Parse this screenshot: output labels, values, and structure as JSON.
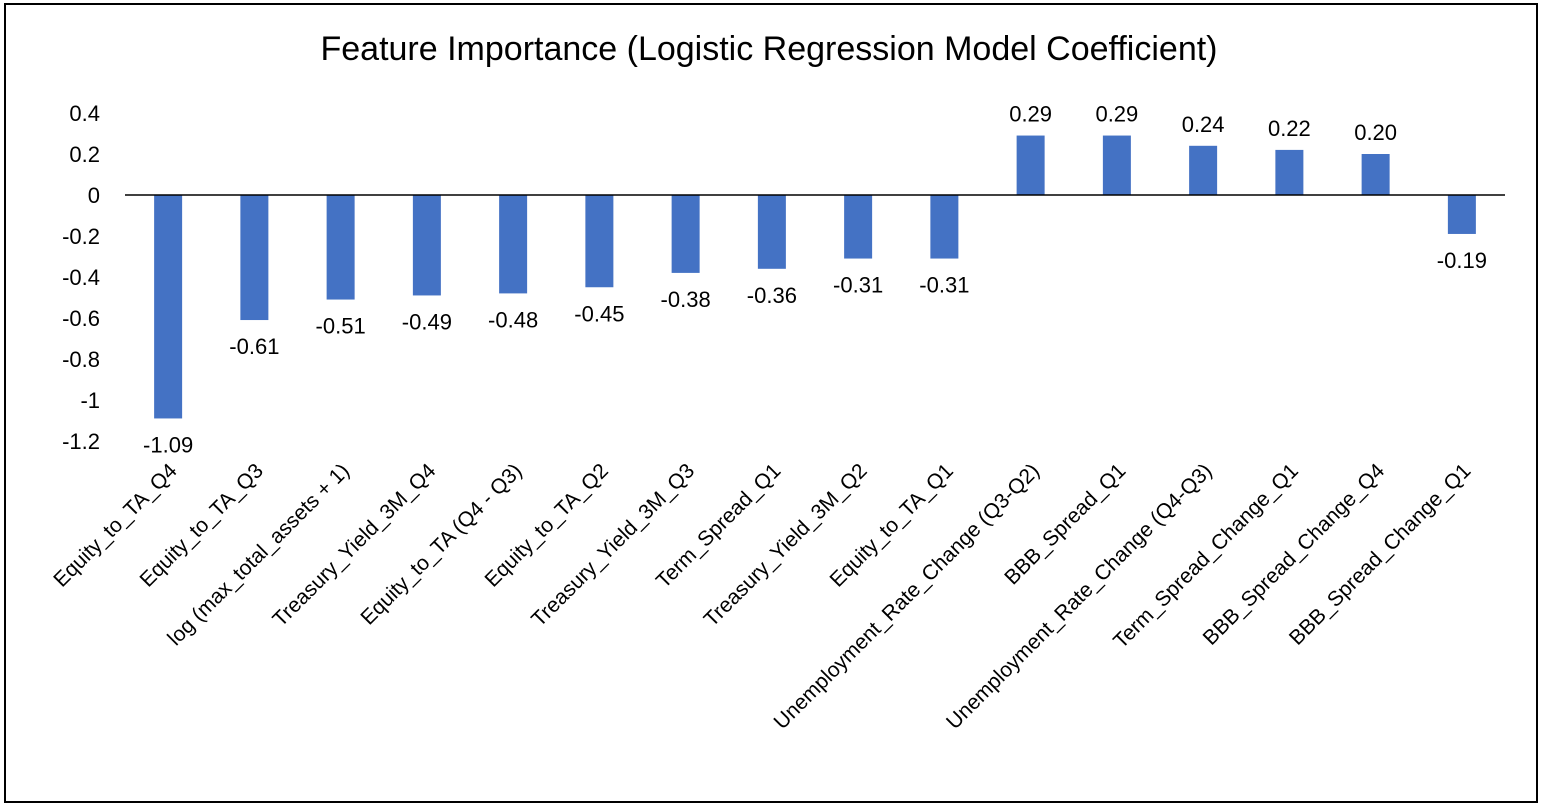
{
  "chart_data": {
    "type": "bar",
    "title": "Feature Importance (Logistic Regression Model Coefficient)",
    "xlabel": "",
    "ylabel": "",
    "categories": [
      "Equity_to_TA_Q4",
      "Equity_to_TA_Q3",
      "log (max_total_assets + 1)",
      "Treasury_Yield_3M_Q4",
      "Equity_to_TA (Q4 - Q3)",
      "Equity_to_TA_Q2",
      "Treasury_Yield_3M_Q3",
      "Term_Spread_Q1",
      "Treasury_Yield_3M_Q2",
      "Equity_to_TA_Q1",
      "Unemployment_Rate_Change (Q3-Q2)",
      "BBB_Spread_Q1",
      "Unemployment_Rate_Change (Q4-Q3)",
      "Term_Spread_Change_Q1",
      "BBB_Spread_Change_Q4",
      "BBB_Spread_Change_Q1"
    ],
    "values": [
      -1.09,
      -0.61,
      -0.51,
      -0.49,
      -0.48,
      -0.45,
      -0.38,
      -0.36,
      -0.31,
      -0.31,
      0.29,
      0.29,
      0.24,
      0.22,
      0.2,
      -0.19
    ],
    "data_labels": [
      "-1.09",
      "-0.61",
      "-0.51",
      "-0.49",
      "-0.48",
      "-0.45",
      "-0.38",
      "-0.36",
      "-0.31",
      "-0.31",
      "0.29",
      "0.29",
      "0.24",
      "0.22",
      "0.20",
      "-0.19"
    ],
    "ylim": [
      -1.2,
      0.4
    ],
    "yticks": [
      0.4,
      0.2,
      0,
      -0.2,
      -0.4,
      -0.6,
      -0.8,
      -1,
      -1.2
    ],
    "ytick_labels": [
      "0.4",
      "0.2",
      "0",
      "-0.2",
      "-0.4",
      "-0.6",
      "-0.8",
      "-1",
      "-1.2"
    ],
    "grid": false,
    "legend": "none",
    "bar_color": "#4472C4",
    "axis_color": "#000000"
  }
}
